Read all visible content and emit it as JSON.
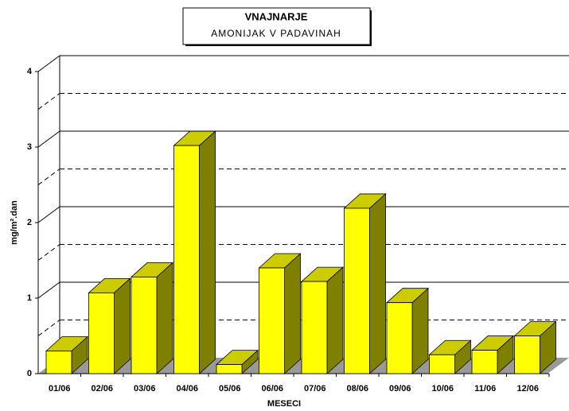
{
  "chart_data": {
    "type": "bar3d",
    "title": "VNAJNARJE",
    "subtitle": "AMONIJAK V PADAVINAH",
    "x_label": "MESECI",
    "y_label": "mg/m².dan",
    "categories": [
      "01/06",
      "02/06",
      "03/06",
      "04/06",
      "05/06",
      "06/06",
      "07/06",
      "08/06",
      "09/06",
      "10/06",
      "11/06",
      "12/06"
    ],
    "values": [
      0.3,
      1.07,
      1.28,
      3.02,
      0.12,
      1.4,
      1.22,
      2.19,
      0.94,
      0.25,
      0.31,
      0.5
    ],
    "color": "#ffff00",
    "ylim": [
      0,
      4
    ],
    "yticks": [
      0,
      1,
      2,
      3,
      4
    ],
    "minor_yticks": [
      0.5,
      1.5,
      2.5,
      3.5
    ],
    "grid": true
  }
}
